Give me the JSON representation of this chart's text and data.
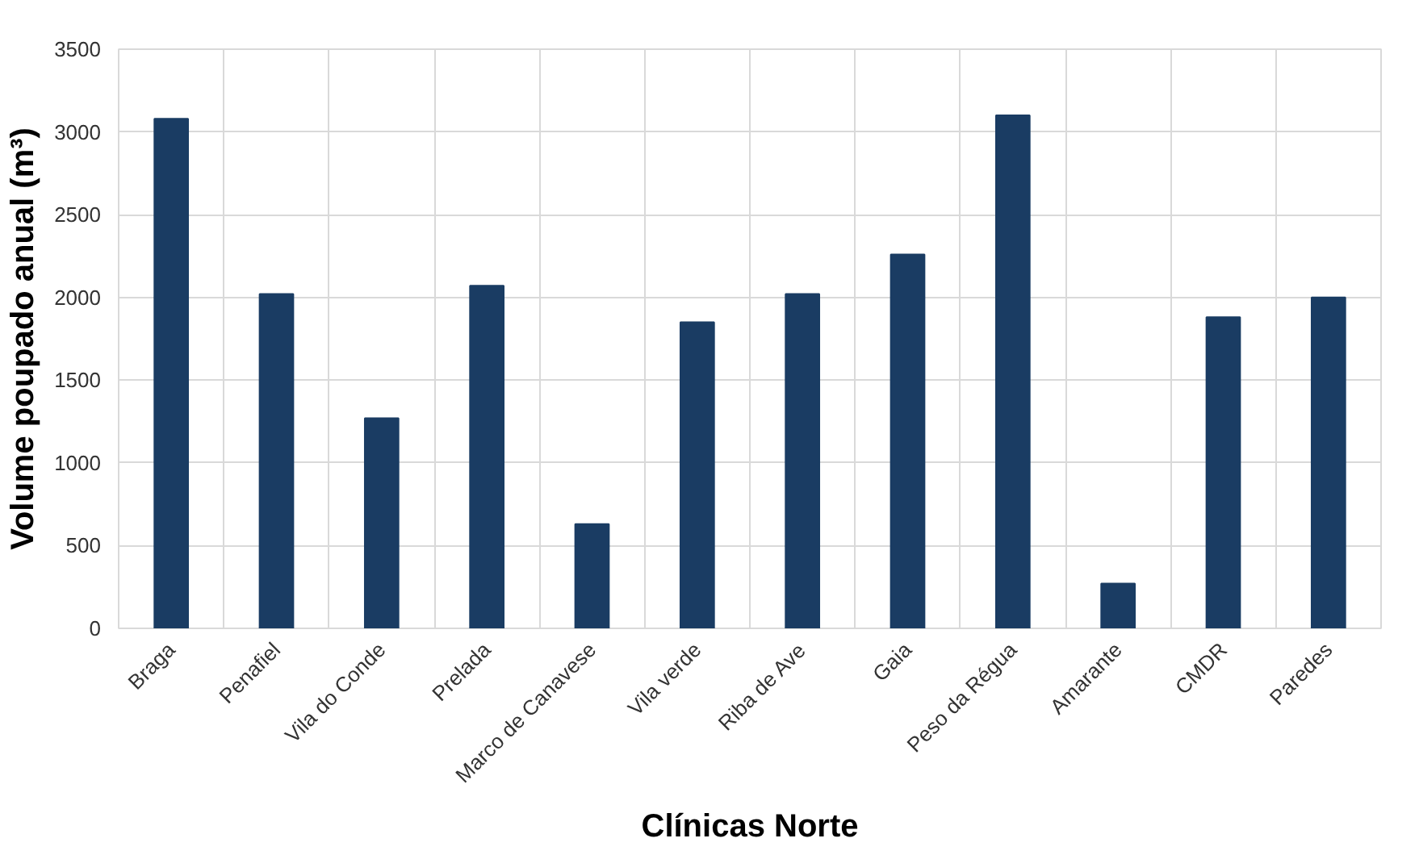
{
  "chart_data": {
    "type": "bar",
    "xlabel": "Clínicas Norte",
    "ylabel": "Volume poupado anual (m³)",
    "categories": [
      "Braga",
      "Penafiel",
      "Vila do Conde",
      "Prelada",
      "Marco de Canavese",
      "Vila verde",
      "Riba de Ave",
      "Gaia",
      "Peso da Régua",
      "Amarante",
      "CMDR",
      "Paredes"
    ],
    "values": [
      3080,
      2020,
      1270,
      2070,
      630,
      1850,
      2020,
      2260,
      3100,
      270,
      1880,
      2000
    ],
    "color": "#1a3c63",
    "ylim": [
      0,
      3500
    ],
    "yticks": [
      0,
      500,
      1000,
      1500,
      2000,
      2500,
      3000,
      3500
    ],
    "grid": true
  }
}
